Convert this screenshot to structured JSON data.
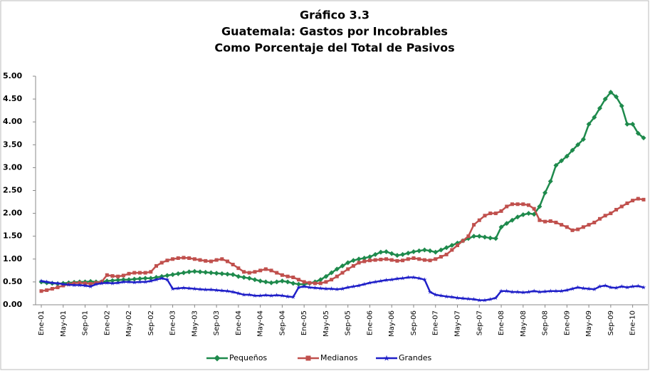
{
  "chart_data": {
    "type": "line",
    "title": [
      "Gráfico 3.3",
      "Guatemala: Gastos por Incobrables",
      "Como Porcentaje del Total de Pasivos"
    ],
    "categories": [
      "Ene-01",
      null,
      null,
      null,
      "May-01",
      null,
      null,
      null,
      "Sep-01",
      null,
      null,
      null,
      "Ene-02",
      null,
      null,
      null,
      "May-02",
      null,
      null,
      null,
      "Sep-02",
      null,
      null,
      null,
      "Ene-03",
      null,
      null,
      null,
      "May-03",
      null,
      null,
      null,
      "Sep-03",
      null,
      null,
      null,
      "Ene-04",
      null,
      null,
      null,
      "May-04",
      null,
      null,
      null,
      "Sep-04",
      null,
      null,
      null,
      "Ene-05",
      null,
      null,
      null,
      "May-05",
      null,
      null,
      null,
      "Sep-05",
      null,
      null,
      null,
      "Ene-06",
      null,
      null,
      null,
      "May-06",
      null,
      null,
      null,
      "Sep-06",
      null,
      null,
      null,
      "Ene-07",
      null,
      null,
      null,
      "May-07",
      null,
      null,
      null,
      "Sep-07",
      null,
      null,
      null,
      "Ene-08",
      null,
      null,
      null,
      "May-08",
      null,
      null,
      null,
      "Sep-08",
      null,
      null,
      null,
      "Ene-09",
      null,
      null,
      null,
      "May-09",
      null,
      null,
      null,
      "Sep-09",
      null,
      null,
      null,
      "Ene-10",
      null,
      null
    ],
    "series": [
      {
        "name": "Pequeños",
        "color": "#1e8a4c",
        "marker": "diamond",
        "values": [
          0.5,
          0.48,
          0.47,
          0.46,
          0.47,
          0.48,
          0.49,
          0.5,
          0.5,
          0.51,
          0.5,
          0.5,
          0.52,
          0.53,
          0.54,
          0.55,
          0.55,
          0.56,
          0.57,
          0.58,
          0.58,
          0.6,
          0.62,
          0.64,
          0.66,
          0.68,
          0.7,
          0.72,
          0.73,
          0.72,
          0.71,
          0.7,
          0.69,
          0.68,
          0.67,
          0.66,
          0.62,
          0.6,
          0.58,
          0.55,
          0.52,
          0.5,
          0.48,
          0.5,
          0.52,
          0.5,
          0.47,
          0.45,
          0.45,
          0.47,
          0.5,
          0.55,
          0.62,
          0.7,
          0.78,
          0.85,
          0.92,
          0.97,
          1.0,
          1.02,
          1.05,
          1.1,
          1.15,
          1.16,
          1.12,
          1.08,
          1.1,
          1.13,
          1.16,
          1.18,
          1.2,
          1.18,
          1.15,
          1.2,
          1.25,
          1.3,
          1.35,
          1.4,
          1.45,
          1.5,
          1.5,
          1.48,
          1.46,
          1.45,
          1.7,
          1.78,
          1.85,
          1.92,
          1.97,
          2.0,
          1.98,
          2.15,
          2.45,
          2.7,
          3.05,
          3.15,
          3.25,
          3.38,
          3.5,
          3.62,
          3.95,
          4.1,
          4.3,
          4.5,
          4.65,
          4.55,
          4.35,
          3.95,
          3.95,
          3.75,
          3.65
        ]
      },
      {
        "name": "Medianos",
        "color": "#c0504d",
        "marker": "square",
        "values": [
          0.3,
          0.32,
          0.35,
          0.38,
          0.42,
          0.45,
          0.47,
          0.48,
          0.47,
          0.46,
          0.48,
          0.5,
          0.65,
          0.63,
          0.62,
          0.64,
          0.68,
          0.7,
          0.7,
          0.7,
          0.72,
          0.85,
          0.92,
          0.97,
          1.0,
          1.02,
          1.03,
          1.02,
          1.0,
          0.98,
          0.96,
          0.95,
          0.98,
          1.0,
          0.95,
          0.88,
          0.8,
          0.72,
          0.7,
          0.72,
          0.75,
          0.78,
          0.75,
          0.7,
          0.65,
          0.62,
          0.6,
          0.55,
          0.5,
          0.48,
          0.47,
          0.47,
          0.5,
          0.55,
          0.62,
          0.7,
          0.78,
          0.85,
          0.92,
          0.95,
          0.97,
          0.98,
          0.99,
          1.0,
          0.98,
          0.96,
          0.97,
          1.0,
          1.02,
          1.0,
          0.98,
          0.97,
          1.0,
          1.05,
          1.1,
          1.2,
          1.3,
          1.4,
          1.5,
          1.75,
          1.85,
          1.95,
          2.0,
          2.0,
          2.05,
          2.15,
          2.2,
          2.2,
          2.2,
          2.18,
          2.1,
          1.85,
          1.82,
          1.83,
          1.8,
          1.75,
          1.7,
          1.63,
          1.65,
          1.7,
          1.75,
          1.8,
          1.88,
          1.95,
          2.0,
          2.08,
          2.15,
          2.22,
          2.28,
          2.32,
          2.3
        ]
      },
      {
        "name": "Grandes",
        "color": "#1f1fc8",
        "marker": "star",
        "values": [
          0.52,
          0.5,
          0.48,
          0.47,
          0.45,
          0.44,
          0.43,
          0.43,
          0.42,
          0.4,
          0.45,
          0.47,
          0.48,
          0.47,
          0.48,
          0.5,
          0.5,
          0.49,
          0.5,
          0.5,
          0.52,
          0.55,
          0.58,
          0.55,
          0.35,
          0.36,
          0.37,
          0.36,
          0.35,
          0.34,
          0.33,
          0.33,
          0.32,
          0.31,
          0.3,
          0.28,
          0.25,
          0.22,
          0.22,
          0.2,
          0.2,
          0.21,
          0.2,
          0.21,
          0.2,
          0.18,
          0.17,
          0.38,
          0.4,
          0.38,
          0.37,
          0.36,
          0.35,
          0.35,
          0.34,
          0.35,
          0.38,
          0.4,
          0.42,
          0.45,
          0.48,
          0.5,
          0.52,
          0.54,
          0.55,
          0.57,
          0.58,
          0.6,
          0.6,
          0.58,
          0.55,
          0.28,
          0.22,
          0.2,
          0.18,
          0.17,
          0.15,
          0.14,
          0.13,
          0.12,
          0.1,
          0.1,
          0.12,
          0.15,
          0.3,
          0.3,
          0.28,
          0.28,
          0.27,
          0.28,
          0.3,
          0.28,
          0.29,
          0.3,
          0.3,
          0.3,
          0.32,
          0.35,
          0.38,
          0.36,
          0.35,
          0.34,
          0.4,
          0.42,
          0.38,
          0.37,
          0.4,
          0.38,
          0.4,
          0.41,
          0.38
        ]
      }
    ],
    "ylim": [
      0,
      5
    ],
    "yticks": [
      {
        "value": 0,
        "label": "0.00"
      },
      {
        "value": 0.5,
        "label": "0.50"
      },
      {
        "value": 1,
        "label": "1.00"
      },
      {
        "value": 1.5,
        "label": "1.50"
      },
      {
        "value": 2,
        "label": "2.00"
      },
      {
        "value": 2.5,
        "label": "2.50"
      },
      {
        "value": 3,
        "label": "3.00"
      },
      {
        "value": 3.5,
        "label": "3.50"
      },
      {
        "value": 4,
        "label": "4.00"
      },
      {
        "value": 4.5,
        "label": "4.50"
      },
      {
        "value": 5,
        "label": "5.00"
      }
    ],
    "legend": "bottom"
  }
}
